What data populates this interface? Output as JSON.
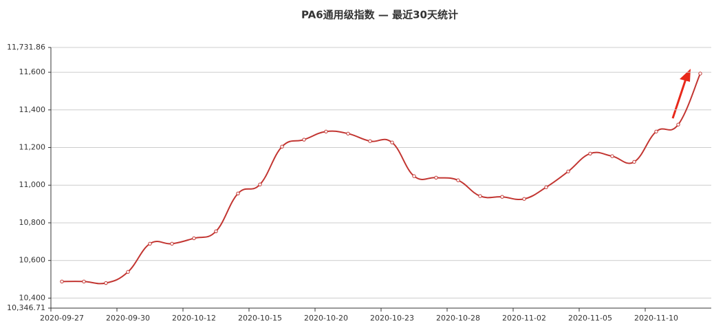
{
  "chart_data": {
    "type": "line",
    "title": "PA6通用级指数 — 最近30天统计",
    "categories": [
      "2020-09-27",
      null,
      null,
      "2020-09-30",
      null,
      null,
      "2020-10-12",
      null,
      null,
      "2020-10-15",
      null,
      null,
      "2020-10-20",
      null,
      null,
      "2020-10-23",
      null,
      null,
      "2020-10-28",
      null,
      null,
      "2020-11-02",
      null,
      null,
      "2020-11-05",
      null,
      null,
      "2020-11-10",
      null,
      null
    ],
    "values": [
      10488,
      10488,
      10480,
      10539,
      10689,
      10689,
      10718,
      10755,
      10956,
      11004,
      11205,
      11242,
      11285,
      11274,
      11234,
      11227,
      11048,
      11040,
      11026,
      10942,
      10938,
      10927,
      10989,
      11073,
      11168,
      11154,
      11124,
      11285,
      11322,
      11593
    ],
    "color": "#c23531",
    "ylim": [
      10346.71,
      11731.86
    ],
    "yticks": [
      {
        "value": 10346.71,
        "label": "10,346.71"
      },
      {
        "value": 10400,
        "label": "10,400"
      },
      {
        "value": 10600,
        "label": "10,600"
      },
      {
        "value": 10800,
        "label": "10,800"
      },
      {
        "value": 11000,
        "label": "11,000"
      },
      {
        "value": 11200,
        "label": "11,200"
      },
      {
        "value": 11400,
        "label": "11,400"
      },
      {
        "value": 11600,
        "label": "11,600"
      },
      {
        "value": 11731.86,
        "label": "11,731.86"
      }
    ],
    "grid": true
  }
}
